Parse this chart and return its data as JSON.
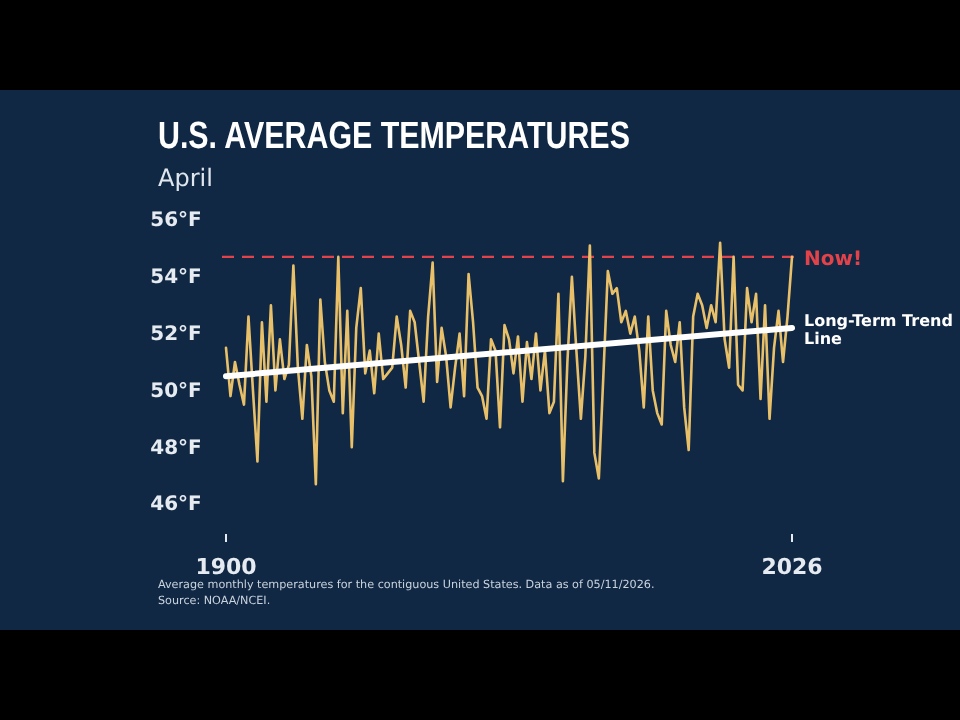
{
  "chart_data": {
    "type": "line",
    "title": "U.S. AVERAGE TEMPERATURES",
    "subtitle": "April",
    "annotations": [
      "Average monthly temperatures for the contiguous United States. Data as of 05/11/2026.",
      "Source: NOAA/NCEI."
    ],
    "xlim": [
      1900,
      2026
    ],
    "xticks": [
      1900,
      2026
    ],
    "ylim": [
      46,
      56
    ],
    "yticks": [
      {
        "value": 46,
        "label": "46°F"
      },
      {
        "value": 48,
        "label": "48°F"
      },
      {
        "value": 50,
        "label": "50°F"
      },
      {
        "value": 52,
        "label": "52°F"
      },
      {
        "value": 54,
        "label": "54°F"
      },
      {
        "value": 56,
        "label": "56°F"
      }
    ],
    "grid": false,
    "legend": false,
    "marker": "none",
    "line_style": "solid",
    "ref_lines": [
      {
        "axis": "y",
        "value": 54.7,
        "label": "Now!",
        "color": "#e2434b",
        "line_style": "dashed"
      }
    ],
    "series": [
      {
        "color": "#e8c06a",
        "x": [
          1900,
          1901,
          1902,
          1903,
          1904,
          1905,
          1906,
          1907,
          1908,
          1909,
          1910,
          1911,
          1912,
          1913,
          1914,
          1915,
          1916,
          1917,
          1918,
          1919,
          1920,
          1921,
          1922,
          1923,
          1924,
          1925,
          1926,
          1927,
          1928,
          1929,
          1930,
          1931,
          1932,
          1933,
          1934,
          1935,
          1936,
          1937,
          1938,
          1939,
          1940,
          1941,
          1942,
          1943,
          1944,
          1945,
          1946,
          1947,
          1948,
          1949,
          1950,
          1951,
          1952,
          1953,
          1954,
          1955,
          1956,
          1957,
          1958,
          1959,
          1960,
          1961,
          1962,
          1963,
          1964,
          1965,
          1966,
          1967,
          1968,
          1969,
          1970,
          1971,
          1972,
          1973,
          1974,
          1975,
          1976,
          1977,
          1978,
          1979,
          1980,
          1981,
          1982,
          1983,
          1984,
          1985,
          1986,
          1987,
          1988,
          1989,
          1990,
          1991,
          1992,
          1993,
          1994,
          1995,
          1996,
          1997,
          1998,
          1999,
          2000,
          2001,
          2002,
          2003,
          2004,
          2005,
          2006,
          2007,
          2008,
          2009,
          2010,
          2011,
          2012,
          2013,
          2014,
          2015,
          2016,
          2017,
          2018,
          2019,
          2020,
          2021,
          2022,
          2023,
          2024,
          2025,
          2026
        ],
        "values": [
          51.5,
          49.8,
          51.0,
          50.2,
          49.5,
          52.6,
          50.0,
          47.5,
          52.4,
          49.6,
          53.0,
          50.0,
          51.8,
          50.4,
          50.9,
          54.4,
          50.8,
          49.0,
          51.6,
          50.5,
          46.7,
          53.2,
          51.0,
          50.0,
          49.6,
          54.7,
          49.2,
          52.8,
          48.0,
          52.2,
          53.6,
          50.6,
          51.4,
          49.9,
          52.0,
          50.4,
          50.6,
          50.8,
          52.6,
          51.6,
          50.1,
          52.8,
          52.4,
          51.0,
          49.6,
          52.6,
          54.5,
          50.3,
          52.2,
          51.2,
          49.4,
          50.8,
          52.0,
          49.8,
          54.1,
          52.4,
          50.1,
          49.8,
          49.0,
          51.8,
          51.4,
          48.7,
          52.3,
          51.8,
          50.6,
          51.9,
          49.6,
          51.7,
          50.4,
          52.0,
          50.0,
          51.4,
          49.2,
          49.6,
          53.4,
          46.8,
          51.0,
          54.0,
          51.4,
          49.0,
          51.2,
          55.1,
          47.8,
          46.9,
          50.5,
          54.2,
          53.4,
          53.6,
          52.4,
          52.8,
          52.0,
          52.6,
          51.4,
          49.4,
          52.6,
          50.0,
          49.2,
          48.8,
          52.8,
          51.6,
          51.0,
          52.4,
          49.4,
          47.9,
          52.6,
          53.4,
          53.0,
          52.2,
          53.0,
          52.4,
          55.2,
          51.8,
          50.8,
          54.7,
          50.2,
          50.0,
          53.6,
          52.4,
          53.4,
          49.7,
          53.0,
          49.0,
          51.5,
          52.8,
          51.0,
          52.6,
          54.7
        ]
      },
      {
        "name": "Long-Term Trend Line",
        "color": "#ffffff",
        "x": [
          1900,
          2026
        ],
        "values": [
          50.5,
          52.2
        ]
      }
    ]
  }
}
